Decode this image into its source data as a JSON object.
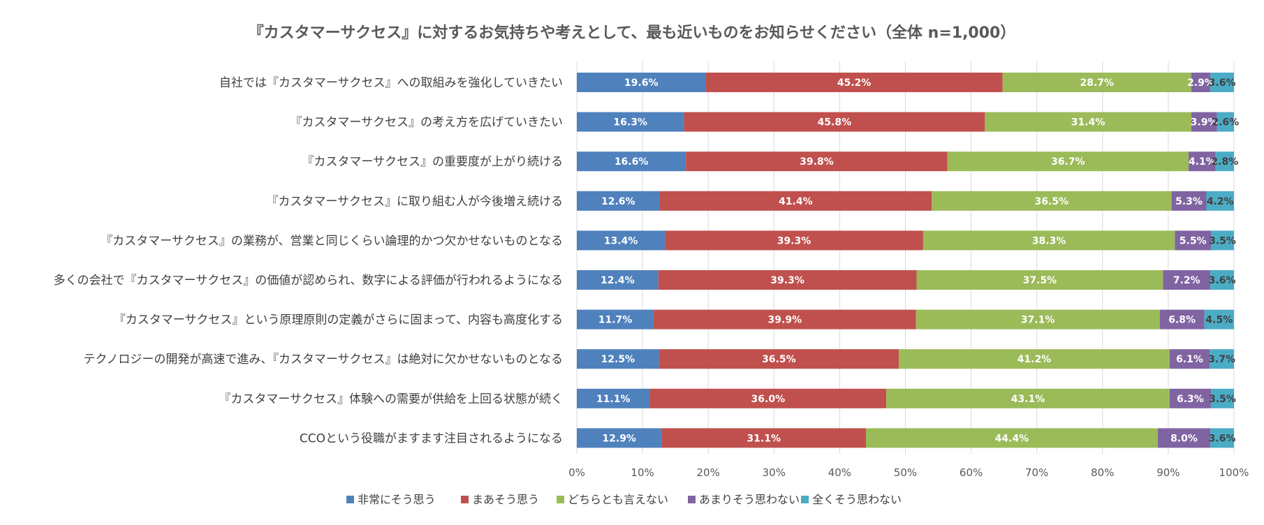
{
  "chart_data": {
    "type": "bar",
    "orientation": "horizontal",
    "stacked": "percent",
    "title": "『カスタマーサクセス』に対するお気持ちや考えとして、最も近いものをお知らせください（全体 n=1,000）",
    "xlabel": "",
    "ylabel": "",
    "xlim": [
      0,
      100
    ],
    "x_ticks": [
      "0%",
      "10%",
      "20%",
      "30%",
      "40%",
      "50%",
      "60%",
      "70%",
      "80%",
      "90%",
      "100%"
    ],
    "grid": true,
    "legend_position": "bottom",
    "categories": [
      "自社では『カスタマーサクセス』への取組みを強化していきたい",
      "『カスタマーサクセス』の考え方を広げていきたい",
      "『カスタマーサクセス』の重要度が上がり続ける",
      "『カスタマーサクセス』に取り組む人が今後増え続ける",
      "『カスタマーサクセス』の業務が、営業と同じくらい論理的かつ欠かせないものとなる",
      "多くの会社で『カスタマーサクセス』の価値が認められ、数字による評価が行われるようになる",
      "『カスタマーサクセス』という原理原則の定義がさらに固まって、内容も高度化する",
      "テクノロジーの開発が高速で進み、『カスタマーサクセス』は絶対に欠かせないものとなる",
      "『カスタマーサクセス』体験への需要が供給を上回る状態が続く",
      "CCOという役職がますます注目されるようになる"
    ],
    "series": [
      {
        "name": "非常にそう思う",
        "color": "#4f81bd",
        "label_color": "#ffffff",
        "values": [
          19.6,
          16.3,
          16.6,
          12.6,
          13.4,
          12.4,
          11.7,
          12.5,
          11.1,
          12.9
        ]
      },
      {
        "name": "まあそう思う",
        "color": "#c0504d",
        "label_color": "#ffffff",
        "values": [
          45.2,
          45.8,
          39.8,
          41.4,
          39.3,
          39.3,
          39.9,
          36.5,
          36.0,
          31.1
        ]
      },
      {
        "name": "どちらとも言えない",
        "color": "#9bbb59",
        "label_color": "#ffffff",
        "values": [
          28.7,
          31.4,
          36.7,
          36.5,
          38.3,
          37.5,
          37.1,
          41.2,
          43.1,
          44.4
        ]
      },
      {
        "name": "あまりそう思わない",
        "color": "#8064a2",
        "label_color": "#ffffff",
        "values": [
          2.9,
          3.9,
          4.1,
          5.3,
          5.5,
          7.2,
          6.8,
          6.1,
          6.3,
          8.0
        ]
      },
      {
        "name": "全くそう思わない",
        "color": "#4bacc6",
        "label_color": "#404040",
        "values": [
          3.6,
          2.6,
          2.8,
          4.2,
          3.5,
          3.6,
          4.5,
          3.7,
          3.5,
          3.6
        ]
      }
    ]
  }
}
